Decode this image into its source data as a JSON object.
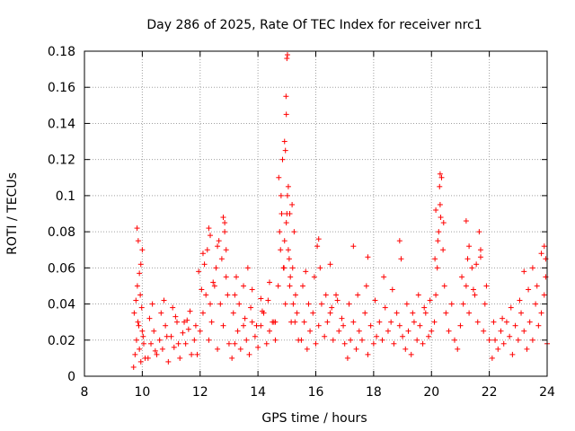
{
  "chart_data": {
    "type": "scatter",
    "title": "Day 286 of 2025, Rate Of TEC Index for receiver nrc1",
    "xlabel": "GPS time / hours",
    "ylabel": "ROTI / TECUs",
    "xlim": [
      8,
      24
    ],
    "ylim": [
      0,
      0.18
    ],
    "x_ticks": [
      "8",
      "10",
      "12",
      "14",
      "16",
      "18",
      "20",
      "22",
      "24"
    ],
    "y_ticks": [
      "0",
      "0.02",
      "0.04",
      "0.06",
      "0.08",
      "0.1",
      "0.12",
      "0.14",
      "0.16",
      "0.18"
    ],
    "grid": true,
    "marker": "plus",
    "series_color": "#ff0000",
    "series": [
      {
        "x": [
          9.7,
          9.75,
          9.8,
          9.85,
          9.9,
          9.95,
          10.0,
          10.05,
          10.1,
          9.72,
          9.78,
          9.83,
          9.88,
          9.93,
          9.98,
          10.03,
          9.9,
          9.95,
          10.0,
          9.82,
          9.86,
          10.2,
          10.3,
          10.4,
          10.5,
          10.6,
          10.7,
          10.8,
          10.9,
          11.0,
          11.1,
          11.2,
          11.3,
          11.4,
          11.5,
          11.6,
          11.7,
          11.8,
          10.25,
          10.45,
          10.65,
          10.85,
          11.05,
          11.25,
          11.45,
          11.65,
          11.85,
          10.35,
          10.75,
          11.15,
          11.55,
          11.9,
          12.0,
          12.1,
          12.2,
          12.3,
          12.4,
          12.5,
          12.6,
          12.7,
          12.8,
          12.9,
          13.0,
          11.95,
          12.05,
          12.15,
          12.25,
          12.35,
          12.45,
          12.55,
          12.65,
          12.75,
          12.85,
          12.95,
          12.3,
          12.35,
          12.8,
          12.85,
          12.1,
          12.9,
          12.6,
          13.1,
          13.2,
          13.3,
          13.4,
          13.5,
          13.6,
          13.7,
          13.8,
          13.9,
          14.0,
          14.1,
          14.2,
          14.3,
          14.4,
          14.5,
          14.6,
          13.15,
          13.35,
          13.55,
          13.75,
          13.95,
          14.15,
          14.35,
          14.55,
          13.2,
          13.5,
          13.8,
          14.1,
          14.4,
          13.25,
          13.65,
          14.6,
          14.7,
          14.75,
          14.8,
          14.85,
          14.9,
          14.95,
          15.0,
          15.05,
          15.1,
          15.15,
          15.2,
          15.25,
          15.3,
          15.35,
          15.4,
          14.72,
          14.78,
          14.82,
          14.88,
          14.92,
          14.98,
          15.02,
          15.08,
          15.12,
          15.18,
          15.22,
          15.28,
          14.92,
          14.95,
          14.97,
          15.0,
          15.02,
          14.98,
          15.05,
          15.1,
          15.5,
          15.6,
          15.7,
          15.8,
          15.9,
          16.0,
          16.1,
          16.2,
          16.3,
          16.4,
          16.5,
          16.6,
          16.7,
          16.8,
          16.9,
          17.0,
          15.55,
          15.75,
          15.95,
          16.15,
          16.35,
          16.55,
          16.75,
          16.95,
          16.05,
          16.1,
          15.65,
          16.5,
          17.1,
          17.2,
          17.3,
          17.4,
          17.5,
          17.6,
          17.7,
          17.8,
          17.9,
          18.0,
          18.1,
          18.2,
          18.3,
          18.4,
          18.5,
          18.6,
          18.7,
          18.8,
          18.9,
          19.0,
          17.15,
          17.45,
          17.75,
          18.05,
          18.35,
          18.65,
          18.95,
          17.3,
          17.8,
          18.9,
          19.1,
          19.2,
          19.3,
          19.4,
          19.5,
          19.6,
          19.7,
          19.8,
          19.9,
          20.0,
          19.15,
          19.35,
          19.55,
          19.75,
          19.95,
          20.1,
          20.15,
          20.2,
          20.25,
          20.3,
          20.35,
          20.4,
          20.45,
          20.5,
          20.6,
          20.7,
          20.8,
          20.12,
          20.22,
          20.32,
          20.42,
          20.28,
          20.3,
          20.15,
          20.9,
          21.0,
          21.1,
          21.2,
          21.3,
          21.4,
          21.5,
          21.6,
          21.7,
          21.8,
          21.9,
          22.0,
          21.05,
          21.25,
          21.45,
          21.65,
          21.85,
          21.2,
          21.55,
          21.7,
          21.3,
          22.1,
          22.2,
          22.3,
          22.4,
          22.5,
          22.6,
          22.7,
          22.8,
          22.9,
          23.0,
          23.1,
          23.2,
          23.3,
          23.4,
          23.5,
          23.6,
          23.7,
          23.8,
          23.9,
          24.0,
          22.15,
          22.45,
          22.75,
          23.05,
          23.35,
          23.65,
          23.95,
          23.2,
          23.5,
          23.8,
          23.95,
          23.9
        ],
        "y": [
          0.005,
          0.012,
          0.02,
          0.03,
          0.015,
          0.008,
          0.025,
          0.018,
          0.01,
          0.035,
          0.042,
          0.05,
          0.028,
          0.045,
          0.038,
          0.022,
          0.057,
          0.062,
          0.07,
          0.082,
          0.075,
          0.01,
          0.018,
          0.025,
          0.012,
          0.02,
          0.015,
          0.028,
          0.008,
          0.022,
          0.016,
          0.03,
          0.01,
          0.024,
          0.018,
          0.026,
          0.012,
          0.02,
          0.032,
          0.014,
          0.035,
          0.022,
          0.038,
          0.018,
          0.03,
          0.036,
          0.028,
          0.04,
          0.042,
          0.033,
          0.031,
          0.012,
          0.025,
          0.035,
          0.045,
          0.02,
          0.03,
          0.05,
          0.015,
          0.04,
          0.028,
          0.055,
          0.018,
          0.058,
          0.048,
          0.062,
          0.07,
          0.04,
          0.052,
          0.06,
          0.075,
          0.065,
          0.085,
          0.045,
          0.082,
          0.078,
          0.088,
          0.08,
          0.068,
          0.07,
          0.072,
          0.01,
          0.018,
          0.025,
          0.015,
          0.028,
          0.02,
          0.012,
          0.03,
          0.022,
          0.016,
          0.028,
          0.035,
          0.018,
          0.025,
          0.03,
          0.02,
          0.035,
          0.04,
          0.032,
          0.038,
          0.028,
          0.036,
          0.042,
          0.03,
          0.045,
          0.05,
          0.048,
          0.043,
          0.052,
          0.055,
          0.06,
          0.03,
          0.05,
          0.08,
          0.1,
          0.12,
          0.06,
          0.04,
          0.09,
          0.07,
          0.05,
          0.03,
          0.06,
          0.08,
          0.045,
          0.035,
          0.02,
          0.11,
          0.07,
          0.09,
          0.06,
          0.075,
          0.085,
          0.1,
          0.065,
          0.055,
          0.095,
          0.04,
          0.03,
          0.13,
          0.125,
          0.155,
          0.176,
          0.178,
          0.145,
          0.105,
          0.09,
          0.02,
          0.03,
          0.015,
          0.025,
          0.035,
          0.018,
          0.028,
          0.04,
          0.022,
          0.03,
          0.035,
          0.02,
          0.045,
          0.025,
          0.032,
          0.018,
          0.05,
          0.04,
          0.055,
          0.06,
          0.045,
          0.038,
          0.042,
          0.028,
          0.072,
          0.076,
          0.058,
          0.062,
          0.01,
          0.02,
          0.03,
          0.015,
          0.025,
          0.02,
          0.035,
          0.012,
          0.028,
          0.018,
          0.022,
          0.03,
          0.02,
          0.038,
          0.025,
          0.03,
          0.018,
          0.035,
          0.028,
          0.022,
          0.04,
          0.045,
          0.05,
          0.042,
          0.055,
          0.048,
          0.065,
          0.072,
          0.066,
          0.075,
          0.015,
          0.025,
          0.012,
          0.03,
          0.02,
          0.028,
          0.018,
          0.035,
          0.022,
          0.025,
          0.04,
          0.035,
          0.045,
          0.038,
          0.042,
          0.03,
          0.045,
          0.06,
          0.08,
          0.095,
          0.11,
          0.07,
          0.05,
          0.035,
          0.025,
          0.04,
          0.02,
          0.065,
          0.075,
          0.088,
          0.085,
          0.105,
          0.112,
          0.092,
          0.015,
          0.028,
          0.04,
          0.05,
          0.035,
          0.06,
          0.045,
          0.03,
          0.07,
          0.025,
          0.05,
          0.02,
          0.055,
          0.065,
          0.048,
          0.08,
          0.04,
          0.086,
          0.062,
          0.066,
          0.072,
          0.01,
          0.02,
          0.015,
          0.025,
          0.018,
          0.03,
          0.022,
          0.012,
          0.028,
          0.02,
          0.035,
          0.025,
          0.015,
          0.03,
          0.02,
          0.04,
          0.028,
          0.035,
          0.045,
          0.018,
          0.03,
          0.032,
          0.038,
          0.042,
          0.048,
          0.05,
          0.055,
          0.058,
          0.06,
          0.068,
          0.065,
          0.072
        ]
      }
    ]
  }
}
